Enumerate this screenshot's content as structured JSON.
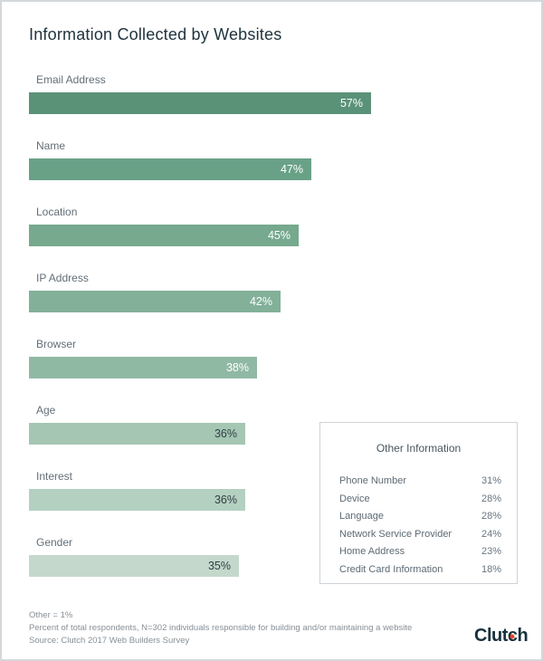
{
  "title": "Information Collected by Websites",
  "chart_data": [
    {
      "type": "bar",
      "orientation": "horizontal",
      "title": "Information Collected by Websites",
      "categories": [
        "Email Address",
        "Name",
        "Location",
        "IP Address",
        "Browser",
        "Age",
        "Interest",
        "Gender"
      ],
      "values": [
        57,
        47,
        45,
        42,
        38,
        36,
        36,
        35
      ],
      "unit": "%",
      "value_labels": [
        "57%",
        "47%",
        "45%",
        "42%",
        "38%",
        "36%",
        "36%",
        "35%"
      ],
      "data_labels_position": "inside-end",
      "axes_visible": false,
      "grid": false,
      "legend": "none",
      "bar_colors": [
        "#5a9278",
        "#69a187",
        "#76a98e",
        "#82b098",
        "#90b9a3",
        "#a4c6b3",
        "#b4d0c1",
        "#c4d9cc"
      ],
      "value_label_colors": [
        "#ffffff",
        "#ffffff",
        "#ffffff",
        "#ffffff",
        "#ffffff",
        "#323f46",
        "#323f46",
        "#323f46"
      ]
    },
    {
      "type": "table",
      "title": "Other Information",
      "rows": [
        [
          "Phone Number",
          "31%"
        ],
        [
          "Device",
          "28%"
        ],
        [
          "Language",
          "28%"
        ],
        [
          "Network Service Provider",
          "24%"
        ],
        [
          "Home Address",
          "23%"
        ],
        [
          "Credit Card Information",
          "18%"
        ]
      ]
    }
  ],
  "footnotes": [
    "Other = 1%",
    "Percent of total respondents, N=302 individuals responsible for building and/or maintaining a website",
    "Source: Clutch 2017 Web Builders Survey"
  ],
  "logo": {
    "text_before_dot": "Clut",
    "dot_letter": "c",
    "text_after_dot": "h",
    "full_text": "Clutch",
    "text_color": "#17313d",
    "dot_color": "#e8452c"
  }
}
